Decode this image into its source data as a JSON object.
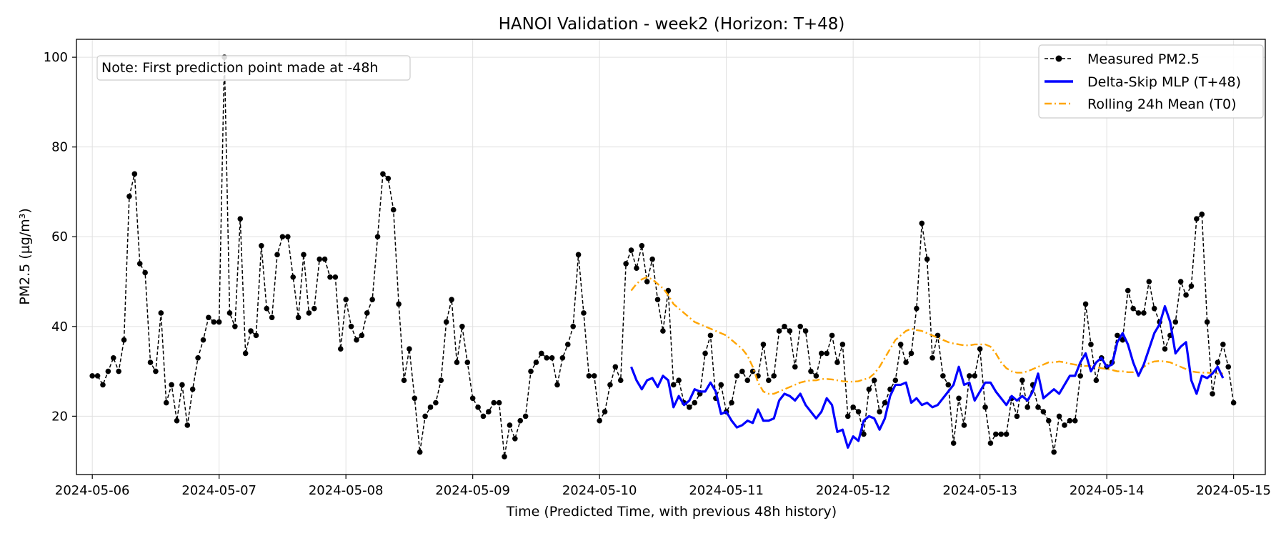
{
  "chart_data": {
    "type": "line",
    "title": "HANOI Validation - week2 (Horizon: T+48)",
    "xlabel": "Time (Predicted Time, with previous 48h history)",
    "ylabel": "PM2.5 (µg/m³)",
    "x_range": [
      "2024-05-05 21:00",
      "2024-05-15 06:00"
    ],
    "ylim": [
      7,
      104
    ],
    "yticks": [
      20,
      40,
      60,
      80,
      100
    ],
    "xticks": [
      "2024-05-06",
      "2024-05-07",
      "2024-05-08",
      "2024-05-09",
      "2024-05-10",
      "2024-05-11",
      "2024-05-12",
      "2024-05-13",
      "2024-05-14",
      "2024-05-15"
    ],
    "grid": true,
    "legend_position": "top-right",
    "annotation": "Note: First prediction point made at -48h",
    "colors": {
      "measured": "#000000",
      "model": "#0000ff",
      "rolling": "#ffa500"
    },
    "series": [
      {
        "name": "Measured PM2.5",
        "style": "dashed-markers",
        "x_start": "2024-05-06 00:00",
        "step_hours": 1,
        "values": [
          29,
          29,
          27,
          30,
          33,
          30,
          37,
          69,
          74,
          54,
          52,
          32,
          30,
          43,
          23,
          27,
          19,
          27,
          18,
          26,
          33,
          37,
          42,
          41,
          41,
          100,
          43,
          40,
          64,
          34,
          39,
          38,
          58,
          44,
          42,
          56,
          60,
          60,
          51,
          42,
          56,
          43,
          44,
          55,
          55,
          51,
          51,
          35,
          46,
          40,
          37,
          38,
          43,
          46,
          60,
          74,
          73,
          66,
          45,
          28,
          35,
          24,
          12,
          20,
          22,
          23,
          28,
          41,
          46,
          32,
          40,
          32,
          24,
          22,
          20,
          21,
          23,
          23,
          11,
          18,
          15,
          19,
          20,
          30,
          32,
          34,
          33,
          33,
          27,
          33,
          36,
          40,
          56,
          43,
          29,
          29,
          19,
          21,
          27,
          31,
          28,
          54,
          57,
          53,
          58,
          50,
          55,
          46,
          39,
          48,
          27,
          28,
          23,
          22,
          23,
          25,
          34,
          38,
          24,
          27,
          21,
          23,
          29,
          30,
          28,
          30,
          29,
          36,
          28,
          29,
          39,
          40,
          39,
          31,
          40,
          39,
          30,
          29,
          34,
          34,
          38,
          32,
          36,
          20,
          22,
          21,
          16,
          26,
          28,
          21,
          23,
          26,
          28,
          36,
          32,
          34,
          44,
          63,
          55,
          33,
          38,
          29,
          27,
          14,
          24,
          18,
          29,
          29,
          35,
          22,
          14,
          16,
          16,
          16,
          24,
          20,
          28,
          22,
          27,
          22,
          21,
          19,
          12,
          20,
          18,
          19,
          19,
          29,
          45,
          36,
          28,
          33,
          31,
          32,
          38,
          37,
          48,
          44,
          43,
          43,
          50,
          44,
          41,
          35,
          38,
          41,
          50,
          47,
          49,
          64,
          65,
          41,
          25,
          32,
          36,
          31,
          23
        ]
      },
      {
        "name": "Delta-Skip MLP (T+48)",
        "style": "solid",
        "x_start": "2024-05-10 06:00",
        "step_hours": 1,
        "values": [
          31,
          28,
          26,
          28,
          28.5,
          26.5,
          29,
          28,
          22,
          24.5,
          22.5,
          23.5,
          26,
          25.5,
          25.5,
          27.5,
          25.5,
          20.5,
          21,
          19,
          17.5,
          18,
          19,
          18.5,
          21.5,
          19,
          19,
          19.5,
          23.5,
          25,
          24.5,
          23.5,
          25,
          22.5,
          21,
          19.5,
          21,
          24,
          22.5,
          16.5,
          17,
          13,
          15.5,
          14.5,
          19,
          20,
          19.5,
          17,
          19.5,
          24.5,
          27,
          27,
          27.5,
          23,
          24,
          22.5,
          23,
          22,
          22.5,
          24,
          25.5,
          27,
          31,
          27,
          27.5,
          23.5,
          25.5,
          27.5,
          27.5,
          25.5,
          24,
          22.5,
          24.5,
          23.5,
          24.5,
          23.5,
          25.5,
          29.5,
          24,
          25,
          26,
          25,
          27,
          29,
          29,
          32,
          34,
          30,
          32,
          33,
          31,
          31.5,
          36.5,
          38.5,
          36,
          32,
          29,
          31.5,
          35,
          38.5,
          40.5,
          44.5,
          41,
          34,
          35.5,
          36.5,
          28,
          25,
          29,
          28.5,
          29.5,
          31,
          28.5
        ]
      },
      {
        "name": "Rolling 24h Mean (T0)",
        "style": "dash-dot",
        "x_start": "2024-05-10 06:00",
        "step_hours": 1,
        "values": [
          48,
          49.5,
          50.5,
          51,
          50.5,
          49.5,
          48.5,
          47,
          45,
          44,
          43,
          42,
          41,
          40.5,
          40,
          39.5,
          39,
          38.5,
          38,
          37,
          36,
          35,
          33.5,
          31,
          27.5,
          25.5,
          25,
          25,
          25.5,
          26,
          26.5,
          27,
          27.5,
          27.8,
          28,
          28,
          28.3,
          28.3,
          28.2,
          28,
          27.8,
          27.7,
          27.7,
          27.8,
          28.2,
          28.5,
          29.5,
          31,
          33,
          35,
          37,
          38,
          39,
          39.5,
          39.2,
          39,
          38.5,
          38,
          37.5,
          37,
          36.5,
          36.2,
          36,
          35.8,
          35.8,
          36,
          36,
          36,
          35.5,
          34,
          32,
          30.7,
          30,
          29.7,
          29.7,
          30,
          30.5,
          31,
          31.5,
          32,
          32,
          32.2,
          32,
          31.7,
          31.5,
          31.3,
          31.2,
          31.2,
          31,
          30.7,
          30.5,
          30.3,
          30,
          30,
          29.8,
          29.8,
          30,
          31,
          31.8,
          32.2,
          32.3,
          32.2,
          32,
          31.5,
          31,
          30.5,
          30,
          29.8,
          29.7,
          29.7,
          29.6,
          29.5,
          29.5
        ]
      }
    ]
  }
}
